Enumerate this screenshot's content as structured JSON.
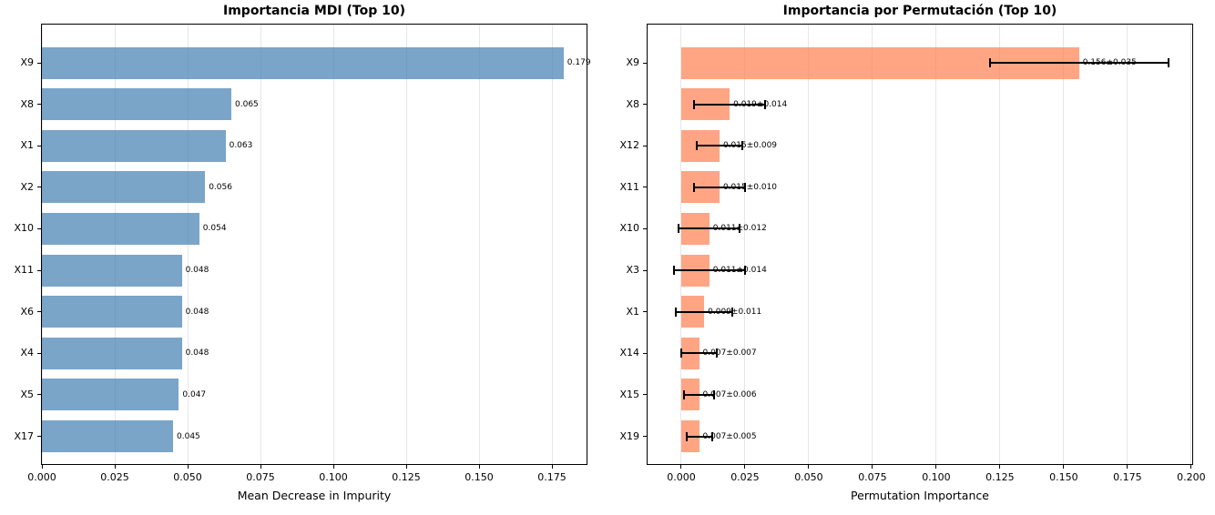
{
  "figure": {
    "background": "#ffffff",
    "grid_color": "#e6e6e6",
    "spine_color": "#000000",
    "error_bar_color": "#000000"
  },
  "chart_data": [
    {
      "type": "bar",
      "orientation": "horizontal",
      "title": "Importancia MDI (Top 10)",
      "xlabel": "Mean Decrease in Impurity",
      "bar_color": "rgba(70,130,180,0.72)",
      "categories": [
        "X9",
        "X8",
        "X1",
        "X2",
        "X10",
        "X11",
        "X6",
        "X4",
        "X5",
        "X17"
      ],
      "values": [
        0.179,
        0.065,
        0.063,
        0.056,
        0.054,
        0.048,
        0.048,
        0.048,
        0.047,
        0.045
      ],
      "value_labels": [
        "0.179",
        "0.065",
        "0.063",
        "0.056",
        "0.054",
        "0.048",
        "0.048",
        "0.048",
        "0.047",
        "0.045"
      ],
      "xticks": [
        0.0,
        0.025,
        0.05,
        0.075,
        0.1,
        0.125,
        0.15,
        0.175
      ],
      "xtick_labels": [
        "0.000",
        "0.025",
        "0.050",
        "0.075",
        "0.100",
        "0.125",
        "0.150",
        "0.175"
      ],
      "xlim": [
        0,
        0.1875
      ],
      "grid": true,
      "legend": false
    },
    {
      "type": "bar",
      "orientation": "horizontal",
      "title": "Importancia por Permutación (Top 10)",
      "xlabel": "Permutation Importance",
      "bar_color": "rgba(255,127,80,0.70)",
      "categories": [
        "X9",
        "X8",
        "X12",
        "X11",
        "X10",
        "X3",
        "X1",
        "X14",
        "X15",
        "X19"
      ],
      "values": [
        0.156,
        0.019,
        0.015,
        0.015,
        0.011,
        0.011,
        0.009,
        0.007,
        0.007,
        0.007
      ],
      "errors": [
        0.035,
        0.014,
        0.009,
        0.01,
        0.012,
        0.014,
        0.011,
        0.007,
        0.006,
        0.005
      ],
      "value_labels": [
        "0.156±0.035",
        "0.019±0.014",
        "0.015±0.009",
        "0.015±0.010",
        "0.011±0.012",
        "0.011±0.014",
        "0.009±0.011",
        "0.007±0.007",
        "0.007±0.006",
        "0.007±0.005"
      ],
      "xticks": [
        0.0,
        0.025,
        0.05,
        0.075,
        0.1,
        0.125,
        0.15,
        0.175,
        0.2
      ],
      "xtick_labels": [
        "0.000",
        "0.025",
        "0.050",
        "0.075",
        "0.100",
        "0.125",
        "0.150",
        "0.175",
        "0.200"
      ],
      "xlim": [
        -0.0132,
        0.2011
      ],
      "grid": true,
      "legend": false
    }
  ]
}
